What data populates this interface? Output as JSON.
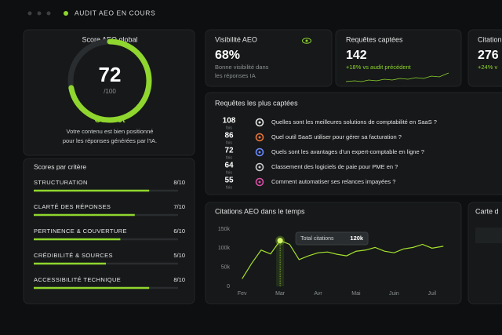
{
  "header": {
    "title": "AUDIT AEO EN COURS"
  },
  "score": {
    "title": "Score AEO global",
    "score": 72,
    "scale_label": "/100",
    "scale": [
      0,
      100
    ],
    "rating": "Correct",
    "description": [
      "Votre contenu est bien positionné",
      "pour les réponses générées par l'IA."
    ]
  },
  "criteria": {
    "title": "Scores par critère",
    "scale": [
      0,
      10
    ],
    "items": [
      {
        "name": "STRUCTURATION",
        "score": 8,
        "label": "8/10"
      },
      {
        "name": "CLARTÉ DES RÉPONSES",
        "score": 7,
        "label": "7/10"
      },
      {
        "name": "PERTINENCE & COUVERTURE",
        "score": 6,
        "label": "6/10"
      },
      {
        "name": "CRÉDIBILITÉ & SOURCES",
        "score": 5,
        "label": "5/10"
      },
      {
        "name": "ACCESSIBILITÉ TECHNIQUE",
        "score": 8,
        "label": "8/10"
      }
    ]
  },
  "kpis": [
    {
      "title": "Visibilité AEO",
      "value": "68%",
      "note": [
        "Bonne visibilité dans",
        "les réponses IA"
      ]
    },
    {
      "title": "Requêtes captées",
      "value": "142",
      "change": "+18% vs audit précédent"
    },
    {
      "title": "Citation",
      "value": "276",
      "change": "+24% v"
    }
  ],
  "requests": {
    "title": "Requêtes les plus captées",
    "unit": "fois",
    "items": [
      {
        "count": 108,
        "text": "Quelles sont les meilleures solutions de comptabilité en SaaS ?"
      },
      {
        "count": 86,
        "text": "Quel outil SaaS utiliser pour gérer sa facturation ?"
      },
      {
        "count": 72,
        "text": "Quels sont les avantages d'un expert-comptable en ligne ?"
      },
      {
        "count": 64,
        "text": "Classement des logiciels de paie pour PME en ?"
      },
      {
        "count": 55,
        "text": "Comment automatiser ses relances impayées ?"
      }
    ]
  },
  "citations_chart": {
    "type": "line",
    "title": "Citations AEO dans le temps",
    "tooltip_label": "Total citations",
    "x": [
      0,
      0.25,
      0.5,
      0.75,
      1,
      1.25,
      1.5,
      1.75,
      2,
      2.25,
      2.5,
      2.75,
      3,
      3.25,
      3.5,
      3.75,
      4,
      4.25,
      4.5,
      4.75,
      5,
      5.3
    ],
    "values": [
      20,
      60,
      95,
      85,
      120,
      110,
      70,
      80,
      88,
      90,
      84,
      80,
      92,
      95,
      102,
      92,
      88,
      98,
      102,
      110,
      100,
      105
    ],
    "value_labels": [
      null,
      null,
      null,
      null,
      "120k",
      null,
      null,
      null,
      null,
      null,
      null,
      null,
      null,
      null,
      null,
      null,
      null,
      null,
      null,
      null,
      null,
      null
    ],
    "color": "#a6e22e",
    "xlim": [
      -0.2,
      5.5
    ],
    "xticks": [
      {
        "value": 0,
        "label": "Fev"
      },
      {
        "value": 1,
        "label": "Mar"
      },
      {
        "value": 2,
        "label": "Avr"
      },
      {
        "value": 3,
        "label": "Mai"
      },
      {
        "value": 4,
        "label": "Juin"
      },
      {
        "value": 5,
        "label": "Juil"
      }
    ],
    "ylim": [
      0,
      150
    ],
    "yticks": [
      {
        "value": 0,
        "label": "0"
      },
      {
        "value": 50,
        "label": "50k"
      },
      {
        "value": 100,
        "label": "100k"
      },
      {
        "value": 150,
        "label": "150k"
      }
    ]
  },
  "map": {
    "title": "Carte d"
  }
}
